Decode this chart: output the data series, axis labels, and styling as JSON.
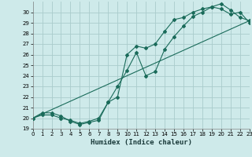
{
  "xlabel": "Humidex (Indice chaleur)",
  "bg_color": "#ceeaea",
  "grid_color": "#aacccc",
  "line_color": "#1a6b5a",
  "xlim": [
    0,
    23
  ],
  "ylim": [
    19,
    31
  ],
  "xticks": [
    0,
    1,
    2,
    3,
    4,
    5,
    6,
    7,
    8,
    9,
    10,
    11,
    12,
    13,
    14,
    15,
    16,
    17,
    18,
    19,
    20,
    21,
    22,
    23
  ],
  "yticks": [
    19,
    20,
    21,
    22,
    23,
    24,
    25,
    26,
    27,
    28,
    29,
    30
  ],
  "ytick_labels": [
    "19",
    "20",
    "21",
    "22",
    "23",
    "24",
    "25",
    "26",
    "27",
    "28",
    "29",
    "30"
  ],
  "series1_x": [
    0,
    1,
    2,
    3,
    4,
    5,
    6,
    7,
    8,
    9,
    10,
    11,
    12,
    13,
    14,
    15,
    16,
    17,
    18,
    19,
    20,
    21,
    22,
    23
  ],
  "series1_y": [
    20.0,
    20.5,
    20.5,
    20.2,
    19.7,
    19.4,
    19.6,
    19.8,
    21.5,
    23.0,
    24.5,
    26.2,
    24.0,
    24.4,
    26.5,
    27.7,
    28.7,
    29.6,
    30.0,
    30.5,
    30.8,
    30.2,
    29.5,
    29.2
  ],
  "series2_x": [
    0,
    1,
    2,
    3,
    4,
    5,
    6,
    7,
    8,
    9,
    10,
    11,
    12,
    13,
    14,
    15,
    16,
    17,
    18,
    19,
    20,
    21,
    22,
    23
  ],
  "series2_y": [
    20.0,
    20.3,
    20.3,
    20.0,
    19.8,
    19.5,
    19.7,
    20.0,
    21.5,
    22.0,
    26.0,
    26.8,
    26.6,
    27.0,
    28.2,
    29.3,
    29.5,
    30.0,
    30.3,
    30.5,
    30.3,
    29.8,
    30.0,
    29.0
  ],
  "series3_x": [
    0,
    23
  ],
  "series3_y": [
    20.0,
    29.2
  ]
}
